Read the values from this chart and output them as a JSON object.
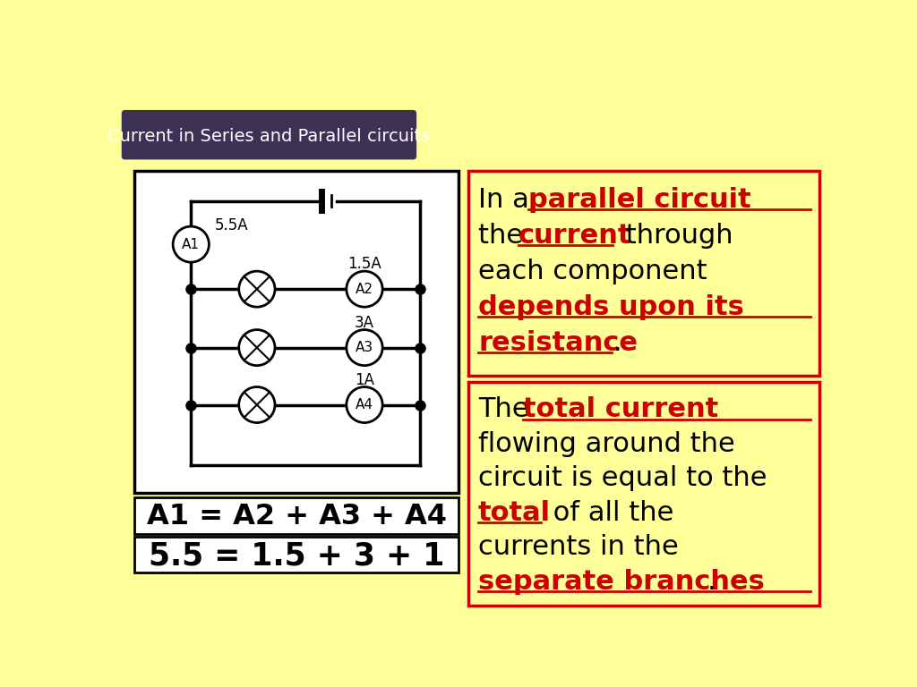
{
  "bg_color": "#FFFF99",
  "title_bg_color": "#3D3255",
  "title_text": "Current in Series and Parallel circuits",
  "title_text_color": "#FFFFFF",
  "circuit_box_color": "#FFFFFF",
  "circuit_box_border": "#000000",
  "text_box_border": "#CC0000",
  "equation1_text": "A1 = A2 + A3 + A4",
  "equation2_text": "5.5 = 1.5 + 3 + 1",
  "red_color": "#CC0000",
  "black_color": "#000000",
  "title_fontsize": 14,
  "text_fontsize": 22
}
